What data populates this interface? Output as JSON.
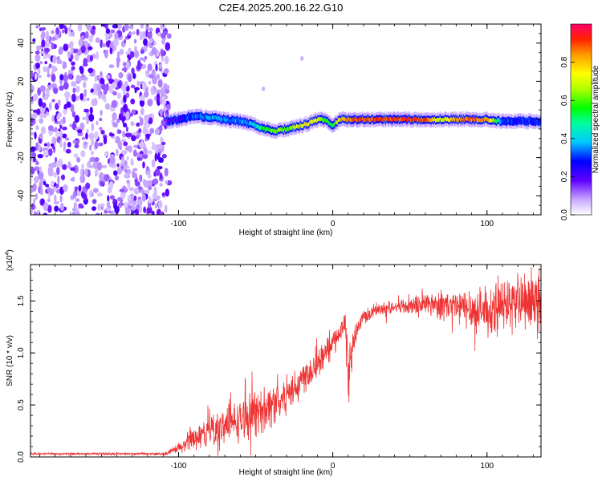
{
  "title": "C2E4.2025.200.16.22.G10",
  "chart_data": [
    {
      "type": "heatmap",
      "xlabel": "Height of straight line (km)",
      "ylabel": "Frequency (Hz)",
      "xlim": [
        -196,
        135
      ],
      "ylim": [
        -50,
        50
      ],
      "xticks": [
        -100,
        0,
        100
      ],
      "xtick_labels": [
        "-100",
        "0",
        "100"
      ],
      "yticks": [
        -40,
        -20,
        0,
        20,
        40
      ],
      "ytick_labels": [
        "-40",
        "-20",
        "0",
        "20",
        "40"
      ],
      "colorbar": {
        "label": "Normalized spectral amplitude",
        "range": [
          0,
          1
        ],
        "ticks": [
          0.0,
          0.2,
          0.4,
          0.6,
          0.8
        ],
        "tick_labels": [
          "0.0",
          "0.2",
          "0.4",
          "0.6",
          "0.8"
        ]
      },
      "noise_region_x": [
        -196,
        -108
      ],
      "trace": {
        "x": [
          -108,
          -100,
          -90,
          -80,
          -70,
          -60,
          -50,
          -45,
          -40,
          -35,
          -30,
          -25,
          -20,
          -15,
          -10,
          -5,
          0,
          5,
          10,
          20,
          40,
          60,
          70,
          80,
          100,
          110,
          120,
          135
        ],
        "frequency": [
          -1,
          0,
          2,
          1,
          0,
          -1,
          -3,
          -5,
          -6,
          -6,
          -5,
          -4,
          -3,
          -2,
          0,
          0,
          -3,
          0,
          0,
          0,
          0,
          0,
          0,
          0,
          0,
          -1,
          -1,
          -1
        ],
        "amplitude": [
          0.15,
          0.2,
          0.3,
          0.35,
          0.35,
          0.3,
          0.4,
          0.55,
          0.6,
          0.65,
          0.6,
          0.7,
          0.75,
          0.8,
          0.75,
          0.6,
          0.5,
          0.85,
          0.9,
          0.95,
          0.95,
          0.95,
          0.7,
          0.9,
          0.9,
          0.3,
          0.25,
          0.25
        ]
      },
      "outliers": [
        {
          "x": -20,
          "frequency": 32
        },
        {
          "x": -45,
          "frequency": 16
        }
      ]
    },
    {
      "type": "line",
      "xlabel": "Height of straight line (km)",
      "ylabel": "SNR (10 * v/v)",
      "yscale_label": "(x10",
      "yscale_exp": "4",
      "yscale_suffix": ")",
      "xlim": [
        -196,
        135
      ],
      "ylim": [
        0,
        1.85
      ],
      "xticks": [
        -100,
        0,
        100
      ],
      "xtick_labels": [
        "-100",
        "0",
        "100"
      ],
      "yticks": [
        0.0,
        0.5,
        1.0,
        1.5
      ],
      "ytick_labels": [
        "0.0",
        "0.5",
        "1.0",
        "1.5"
      ],
      "series": [
        {
          "color": "#ee3333",
          "envelope_x": [
            -196,
            -110,
            -105,
            -100,
            -90,
            -80,
            -70,
            -60,
            -50,
            -40,
            -30,
            -20,
            -10,
            -5,
            0,
            5,
            8,
            10,
            15,
            20,
            30,
            40,
            50,
            60,
            70,
            80,
            90,
            100,
            110,
            120,
            135
          ],
          "envelope_y": [
            0.03,
            0.03,
            0.05,
            0.08,
            0.18,
            0.25,
            0.3,
            0.35,
            0.42,
            0.5,
            0.6,
            0.75,
            0.9,
            1.0,
            1.1,
            1.2,
            1.3,
            0.8,
            1.2,
            1.35,
            1.42,
            1.45,
            1.45,
            1.48,
            1.47,
            1.44,
            1.42,
            1.4,
            1.45,
            1.5,
            1.45
          ],
          "envelope_noise": [
            0.01,
            0.01,
            0.03,
            0.06,
            0.12,
            0.15,
            0.18,
            0.2,
            0.22,
            0.22,
            0.2,
            0.18,
            0.15,
            0.12,
            0.1,
            0.1,
            0.15,
            0.3,
            0.1,
            0.08,
            0.06,
            0.06,
            0.1,
            0.12,
            0.15,
            0.18,
            0.2,
            0.22,
            0.25,
            0.25,
            0.25
          ]
        }
      ]
    }
  ]
}
